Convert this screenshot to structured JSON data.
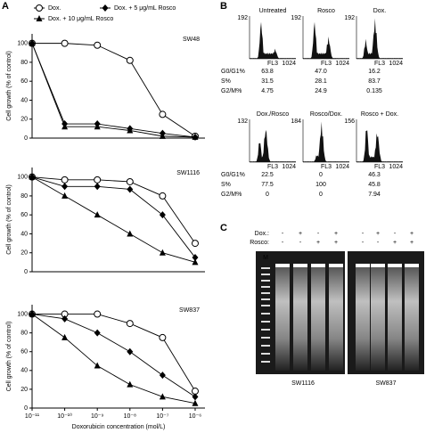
{
  "panel_labels": [
    "A",
    "B",
    "C"
  ],
  "chart_data": [
    {
      "type": "line",
      "label": "SW48",
      "ylabel": "Cell growth (% of control)",
      "xscale": "log",
      "xlim": [
        1e-11,
        2e-06
      ],
      "ylim": [
        0,
        110
      ],
      "yticks": [
        0,
        20,
        40,
        60,
        80,
        100
      ],
      "x": [
        1e-11,
        1e-10,
        1e-09,
        1e-08,
        1e-07,
        1e-06
      ],
      "series": [
        {
          "name": "Dox.",
          "marker": "circle-open",
          "color": "#000000",
          "values": [
            100,
            100,
            98,
            82,
            25,
            2
          ]
        },
        {
          "name": "Dox. + 5 μg/mL Rosco",
          "marker": "diamond",
          "color": "#000000",
          "values": [
            100,
            15,
            15,
            10,
            5,
            1
          ]
        },
        {
          "name": "Dox. + 10 μg/mL Rosco",
          "marker": "triangle",
          "color": "#000000",
          "values": [
            100,
            12,
            12,
            8,
            2,
            1
          ]
        }
      ]
    },
    {
      "type": "line",
      "label": "SW1116",
      "ylabel": "Cell growth (% of control)",
      "xscale": "log",
      "xlim": [
        1e-11,
        2e-06
      ],
      "ylim": [
        0,
        110
      ],
      "yticks": [
        0,
        20,
        40,
        60,
        80,
        100
      ],
      "x": [
        1e-11,
        1e-10,
        1e-09,
        1e-08,
        1e-07,
        1e-06
      ],
      "series": [
        {
          "marker": "circle-open",
          "color": "#000000",
          "values": [
            100,
            97,
            97,
            95,
            80,
            30
          ]
        },
        {
          "marker": "diamond",
          "color": "#000000",
          "values": [
            100,
            90,
            90,
            87,
            60,
            15
          ]
        },
        {
          "marker": "triangle",
          "color": "#000000",
          "values": [
            100,
            80,
            60,
            40,
            20,
            10
          ]
        }
      ]
    },
    {
      "type": "line",
      "label": "SW837",
      "ylabel": "Cell growth (% of control)",
      "xlabel": "Doxorubicin concentration (mol/L)",
      "xscale": "log",
      "xlim": [
        1e-11,
        2e-06
      ],
      "ylim": [
        0,
        110
      ],
      "yticks": [
        0,
        20,
        40,
        60,
        80,
        100
      ],
      "xticks": [
        {
          "value": 1e-11,
          "label": "10⁻¹¹"
        },
        {
          "value": 1e-10,
          "label": "10⁻¹⁰"
        },
        {
          "value": 1e-09,
          "label": "10⁻⁹"
        },
        {
          "value": 1e-08,
          "label": "10⁻⁸"
        },
        {
          "value": 1e-07,
          "label": "10⁻⁷"
        },
        {
          "value": 1e-06,
          "label": "10⁻⁶"
        }
      ],
      "x": [
        1e-11,
        1e-10,
        1e-09,
        1e-08,
        1e-07,
        1e-06
      ],
      "series": [
        {
          "marker": "circle-open",
          "color": "#000000",
          "values": [
            100,
            100,
            100,
            90,
            75,
            18
          ]
        },
        {
          "marker": "diamond",
          "color": "#000000",
          "values": [
            100,
            95,
            80,
            60,
            35,
            12
          ]
        },
        {
          "marker": "triangle",
          "color": "#000000",
          "values": [
            100,
            75,
            45,
            25,
            12,
            5
          ]
        }
      ]
    }
  ],
  "panel_b": {
    "groups": [
      {
        "row_labels": [
          "G0/G1%",
          "S%",
          "G2/M%"
        ],
        "samples": [
          {
            "title": "Untreated",
            "ymax": "192",
            "xmax": "1024",
            "x_label": "FL3",
            "values": [
              "63.8",
              "31.5",
              "4.75"
            ]
          },
          {
            "title": "Rosco",
            "ymax": "192",
            "xmax": "1024",
            "x_label": "FL3",
            "values": [
              "47.0",
              "28.1",
              "24.9"
            ]
          },
          {
            "title": "Dox.",
            "ymax": "192",
            "xmax": "1024",
            "x_label": "FL3",
            "values": [
              "16.2",
              "83.7",
              "0.135"
            ]
          }
        ]
      },
      {
        "row_labels": [
          "G0/G1%",
          "S%",
          "G2/M%"
        ],
        "samples": [
          {
            "title": "Dox./Rosco",
            "ymax": "132",
            "xmax": "1024",
            "x_label": "FL3",
            "values": [
              "22.5",
              "77.5",
              "0"
            ]
          },
          {
            "title": "Rosco/Dox.",
            "ymax": "184",
            "xmax": "1024",
            "x_label": "FL3",
            "values": [
              "0",
              "100",
              "0"
            ]
          },
          {
            "title": "Rosco + Dox.",
            "ymax": "156",
            "xmax": "1024",
            "x_label": "FL3",
            "values": [
              "46.3",
              "45.8",
              "7.94"
            ]
          }
        ]
      }
    ]
  },
  "panel_c": {
    "rows": [
      {
        "label": "Dox.:",
        "signs": [
          "-",
          "+",
          "-",
          "+",
          "-",
          "+",
          "-",
          "+"
        ]
      },
      {
        "label": "Rosco:",
        "signs": [
          "-",
          "-",
          "+",
          "+",
          "-",
          "-",
          "+",
          "+"
        ]
      }
    ],
    "marker_label": "M",
    "gel_labels": [
      "SW1116",
      "SW837"
    ]
  }
}
